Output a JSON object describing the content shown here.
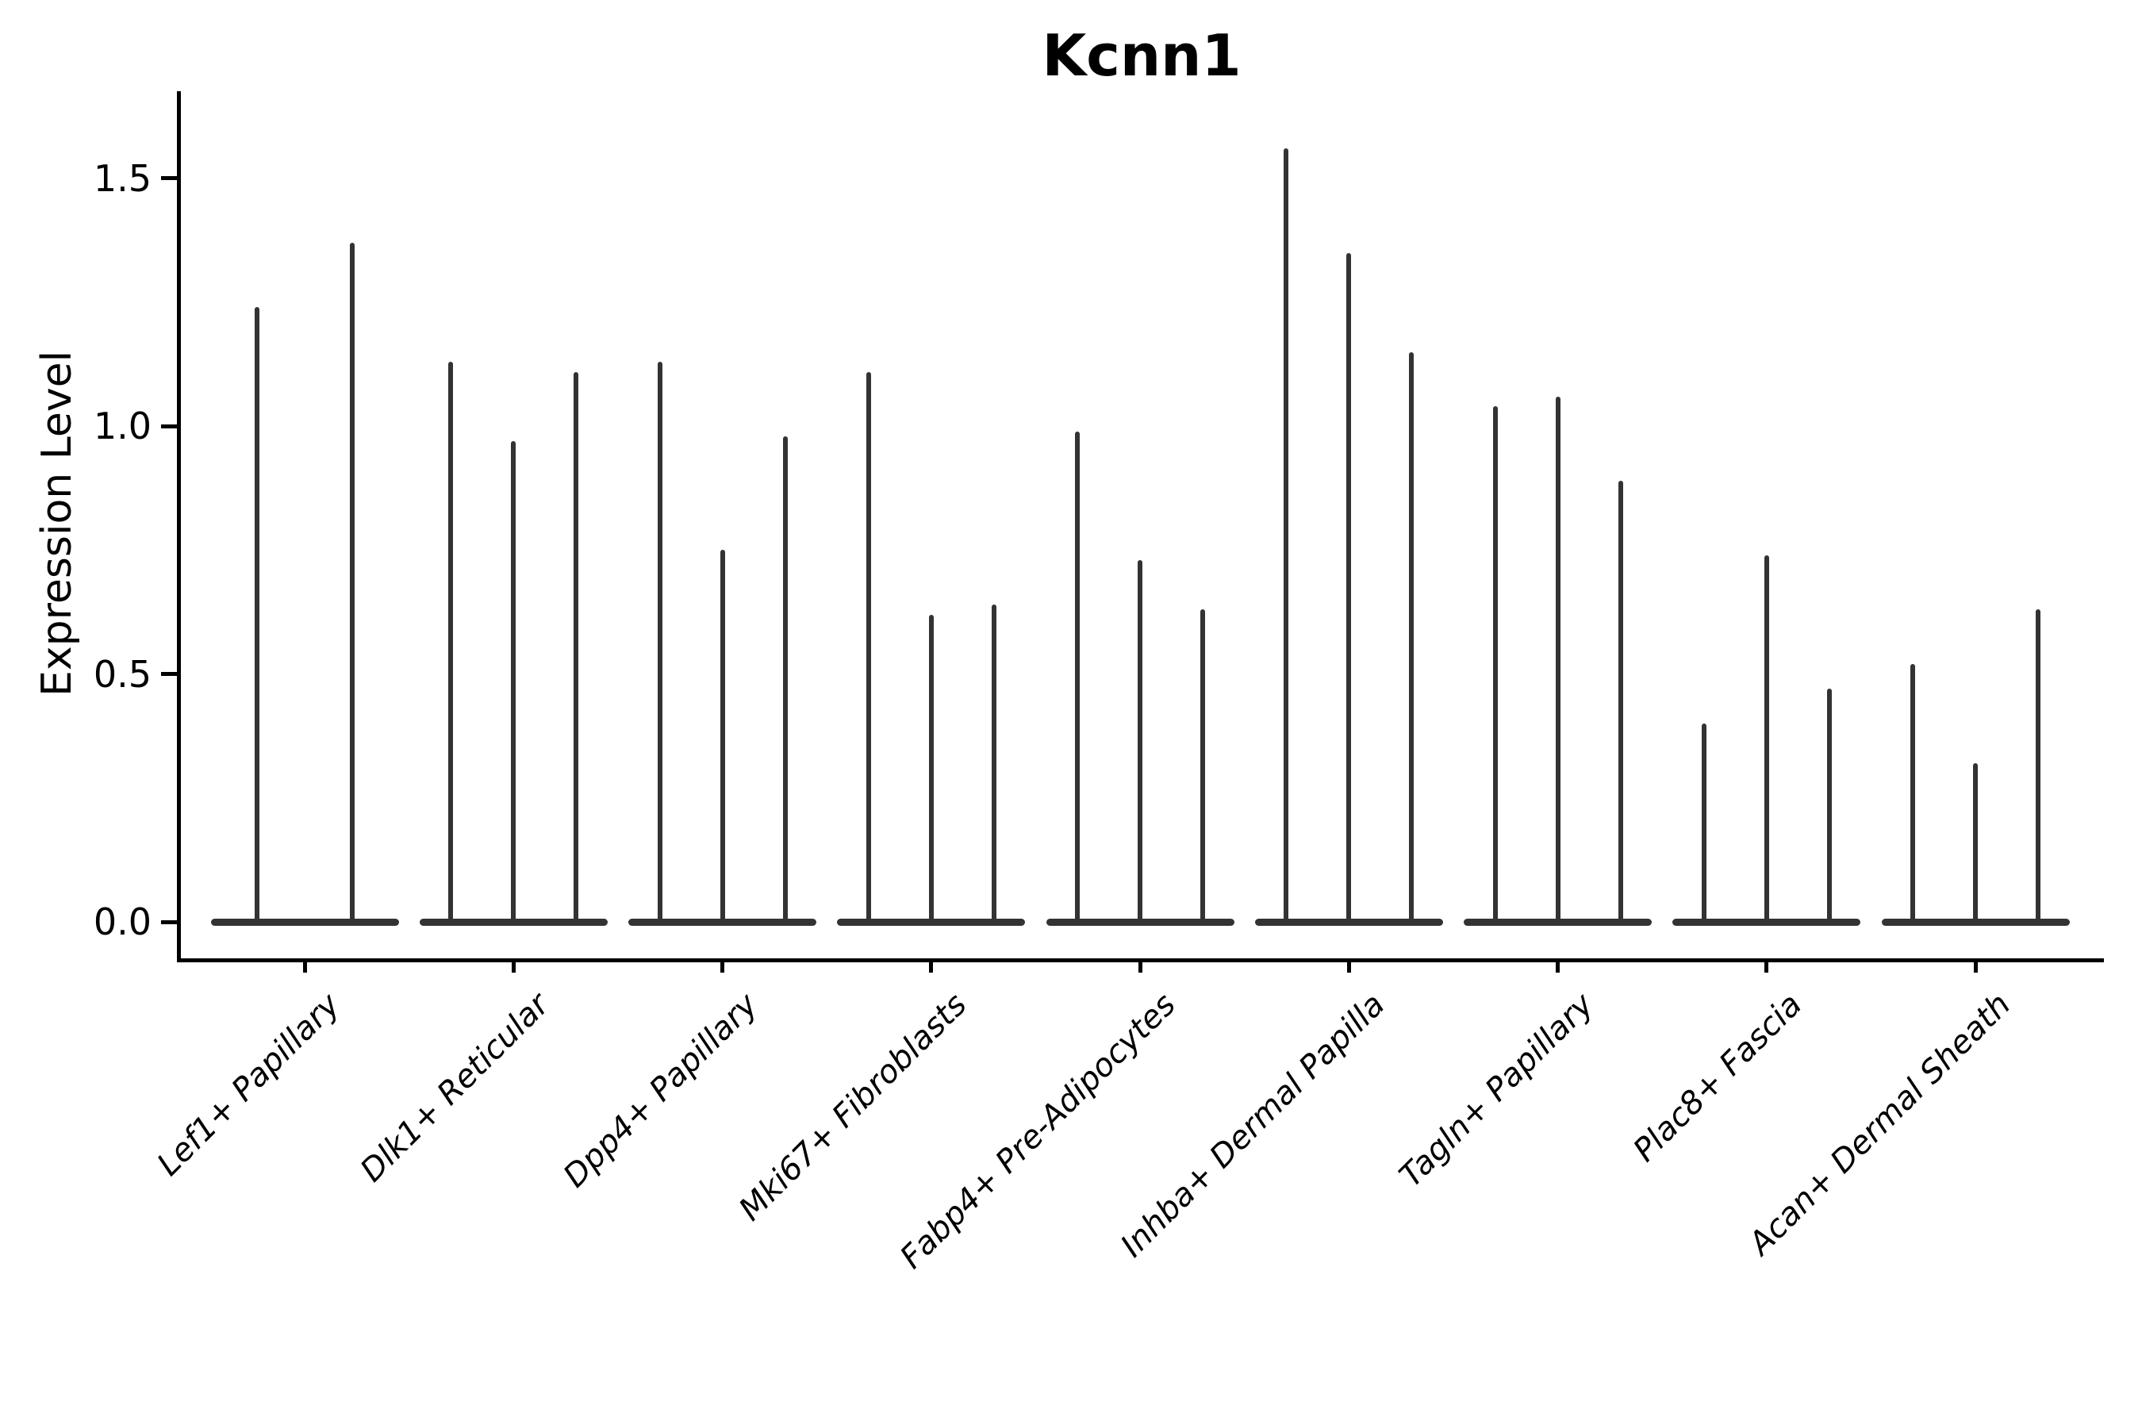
{
  "chart_data": {
    "type": "violin",
    "title": "Kcnn1",
    "ylabel": "Expression Level",
    "xlabel": "",
    "ylim": [
      0,
      1.62
    ],
    "yticks": [
      {
        "label": "0.0",
        "value": 0.0
      },
      {
        "label": "0.5",
        "value": 0.5
      },
      {
        "label": "1.0",
        "value": 1.0
      },
      {
        "label": "1.5",
        "value": 1.5
      }
    ],
    "grid": false,
    "legend_position": "none",
    "categories": [
      "Lef1+ Papillary",
      "Dlk1+ Reticular",
      "Dpp4+ Papillary",
      "Mki67+ Fibroblasts",
      "Fabp4+ Pre-Adipocytes",
      "Inhba+ Dermal Papilla",
      "Tagln+ Papillary",
      "Plac8+ Fascia",
      "Acan+ Dermal Sheath"
    ],
    "groups": [
      {
        "label": "Lef1+ Papillary",
        "violin_max_values": [
          1.24,
          1.37
        ]
      },
      {
        "label": "Dlk1+ Reticular",
        "violin_max_values": [
          1.13,
          0.97,
          1.11
        ]
      },
      {
        "label": "Dpp4+ Papillary",
        "violin_max_values": [
          1.13,
          0.75,
          0.98
        ]
      },
      {
        "label": "Mki67+ Fibroblasts",
        "violin_max_values": [
          1.11,
          0.62,
          0.64
        ]
      },
      {
        "label": "Fabp4+ Pre-Adipocytes",
        "violin_max_values": [
          0.99,
          0.73,
          0.63
        ]
      },
      {
        "label": "Inhba+ Dermal Papilla",
        "violin_max_values": [
          1.56,
          1.35,
          1.15
        ]
      },
      {
        "label": "Tagln+ Papillary",
        "violin_max_values": [
          1.04,
          1.06,
          0.89
        ]
      },
      {
        "label": "Plac8+ Fascia",
        "violin_max_values": [
          0.4,
          0.74,
          0.47
        ]
      },
      {
        "label": "Acan+ Dermal Sheath",
        "violin_max_values": [
          0.52,
          0.32,
          0.63
        ]
      }
    ],
    "colors": {
      "violin": "#333333",
      "axis": "#000000",
      "text": "#000000",
      "background": "#ffffff"
    }
  }
}
